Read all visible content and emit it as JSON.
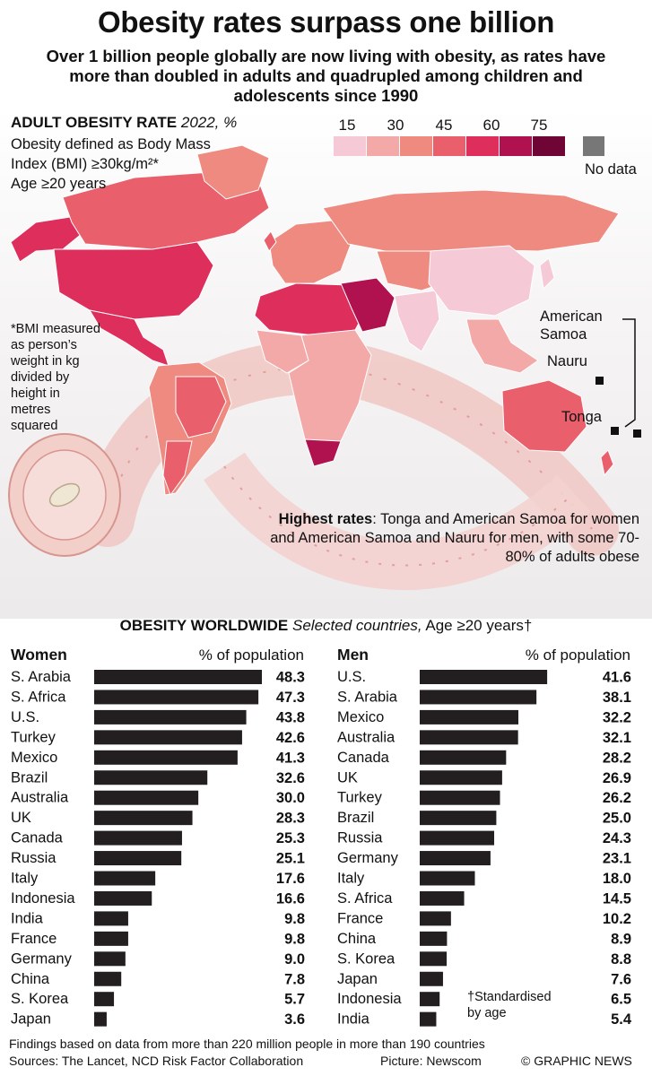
{
  "header": {
    "title": "Obesity rates surpass one billion",
    "subtitle": "Over 1 billion people globally are now living with obesity, as rates have more than doubled in adults and quadrupled among children and adolescents since 1990"
  },
  "map": {
    "heading_bold": "ADULT OBESITY RATE",
    "heading_italic": "2022, %",
    "note_line1": "Obesity defined as Body Mass",
    "note_line2": "Index (BMI) ≥30kg/m²*",
    "note_line3": "Age ≥20 years",
    "legend": {
      "ticks": [
        "15",
        "30",
        "45",
        "60",
        "75"
      ],
      "colors": [
        "#f5c9d6",
        "#f4a9a9",
        "#ef8a80",
        "#ea5f6c",
        "#de2e5c",
        "#b0124f",
        "#6e0535"
      ],
      "no_data_color": "#777777",
      "no_data_label": "No data"
    },
    "bmi_note": "*BMI measured as person’s weight in kg divided by height in metres squared",
    "islands": {
      "american_samoa": "American Samoa",
      "nauru": "Nauru",
      "tonga": "Tonga"
    },
    "highest": {
      "label": "Highest rates",
      "text": "Tonga and American Samoa for women and American Samoa and Nauru for men, with some 70-80% of adults obese"
    }
  },
  "worldwide": {
    "heading_bold": "OBESITY WORLDWIDE",
    "heading_italic": "Selected countries,",
    "heading_rest": "Age ≥20 years†"
  },
  "chart_data": [
    {
      "type": "bar",
      "title": "Women",
      "ylabel": "% of population",
      "categories": [
        "S. Arabia",
        "S. Africa",
        "U.S.",
        "Turkey",
        "Mexico",
        "Brazil",
        "Australia",
        "UK",
        "Canada",
        "Russia",
        "Italy",
        "Indonesia",
        "India",
        "France",
        "Germany",
        "China",
        "S. Korea",
        "Japan"
      ],
      "values": [
        48.3,
        47.3,
        43.8,
        42.6,
        41.3,
        32.6,
        30.0,
        28.3,
        25.3,
        25.1,
        17.6,
        16.6,
        9.8,
        9.8,
        9.0,
        7.8,
        5.7,
        3.6
      ],
      "labels": [
        "48.3",
        "47.3",
        "43.8",
        "42.6",
        "41.3",
        "32.6",
        "30.0",
        "28.3",
        "25.3",
        "25.1",
        "17.6",
        "16.6",
        "9.8",
        "9.8",
        "9.0",
        "7.8",
        "5.7",
        "3.6"
      ],
      "bar_color": "#231f20"
    },
    {
      "type": "bar",
      "title": "Men",
      "ylabel": "% of population",
      "categories": [
        "U.S.",
        "S. Arabia",
        "Mexico",
        "Australia",
        "Canada",
        "UK",
        "Turkey",
        "Brazil",
        "Russia",
        "Germany",
        "Italy",
        "S. Africa",
        "France",
        "China",
        "S. Korea",
        "Japan",
        "Indonesia",
        "India"
      ],
      "values": [
        41.6,
        38.1,
        32.2,
        32.1,
        28.2,
        26.9,
        26.2,
        25.0,
        24.3,
        23.1,
        18.0,
        14.5,
        10.2,
        8.9,
        8.8,
        7.6,
        6.5,
        5.4
      ],
      "labels": [
        "41.6",
        "38.1",
        "32.2",
        "32.1",
        "28.2",
        "26.9",
        "26.2",
        "25.0",
        "24.3",
        "23.1",
        "18.0",
        "14.5",
        "10.2",
        "8.9",
        "8.8",
        "7.6",
        "6.5",
        "5.4"
      ],
      "bar_color": "#231f20",
      "annotation": "†Standardised by age"
    }
  ],
  "footer": {
    "findings": "Findings based on data from more than 220 million people in more than 190 countries",
    "sources": "Sources: The Lancet, NCD Risk Factor Collaboration",
    "picture": "Picture: Newscom",
    "credit": "© GRAPHIC NEWS"
  }
}
